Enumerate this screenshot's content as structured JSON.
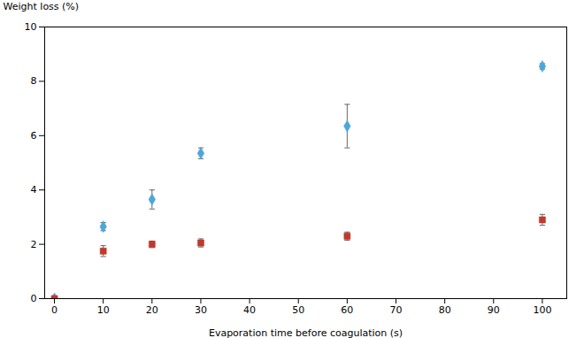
{
  "chart_data": {
    "type": "scatter",
    "x": [
      0,
      10,
      20,
      30,
      60,
      100
    ],
    "series": [
      {
        "color": "#4da6d9",
        "marker": "diamond",
        "values": [
          0.0,
          2.65,
          3.65,
          5.35,
          6.35,
          8.55
        ],
        "errors": [
          0.0,
          0.15,
          0.35,
          0.2,
          0.8,
          0.1
        ]
      },
      {
        "color": "#c0392b",
        "marker": "square",
        "values": [
          0.0,
          1.75,
          2.0,
          2.05,
          2.3,
          2.9
        ],
        "errors": [
          0.0,
          0.2,
          0.12,
          0.15,
          0.15,
          0.2
        ]
      }
    ],
    "xlabel": "Evaporation time before coagulation (s)",
    "ylabel": "Weight loss (%)",
    "xlim": [
      -2,
      105
    ],
    "ylim": [
      0,
      10
    ],
    "xticks": [
      0,
      10,
      20,
      30,
      40,
      50,
      60,
      70,
      80,
      90,
      100
    ],
    "yticks": [
      0,
      2,
      4,
      6,
      8,
      10
    ],
    "grid": false
  }
}
